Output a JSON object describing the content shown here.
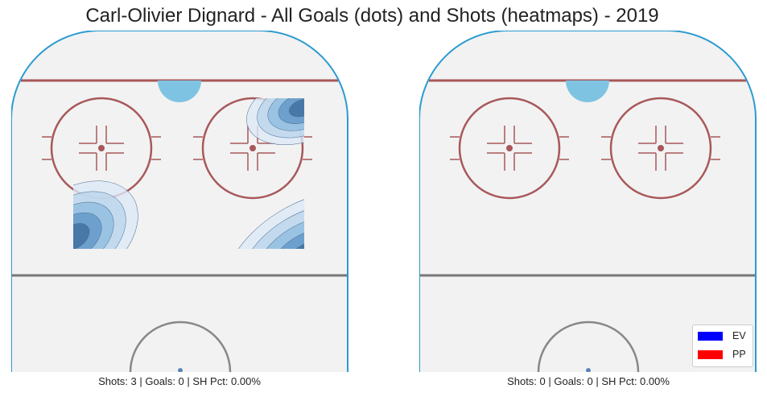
{
  "title": "Carl-Olivier Dignard - All Goals (dots) and Shots (heatmaps) - 2019",
  "colors": {
    "rink_background": "#f2f2f2",
    "boards": "#2b9bd0",
    "goal_line": "#a8585a",
    "faceoff_marks": "#a8585a",
    "crease": "#7ec4e2",
    "blue_line": "#777777",
    "center_circle": "#888888",
    "heatmap": "Blues"
  },
  "panels": [
    {
      "caption": "Shots: 3 | Goals: 0 | SH Pct: 0.00%"
    },
    {
      "caption": "Shots: 0 | Goals: 0 | SH Pct: 0.00%"
    }
  ],
  "legend": {
    "items": [
      {
        "label": "EV",
        "color": "#0000ff"
      },
      {
        "label": "PP",
        "color": "#ff0000"
      }
    ]
  },
  "chart_data": [
    {
      "type": "heatmap",
      "caption": "Shots: 3 | Goals: 0 | SH Pct: 0.00%",
      "shots": 3,
      "goals": 0,
      "sh_pct": "0.00%",
      "goal_dots": [],
      "shot_density_hotspots": [
        {
          "area": "right faceoff circle, near goal line",
          "relative_intensity": 0.85
        },
        {
          "area": "left side below faceoff circles",
          "relative_intensity": 0.9
        },
        {
          "area": "right side below faceoff circles",
          "relative_intensity": 0.95
        }
      ],
      "axes_visible": false
    },
    {
      "type": "heatmap",
      "caption": "Shots: 0 | Goals: 0 | SH Pct: 0.00%",
      "shots": 0,
      "goals": 0,
      "sh_pct": "0.00%",
      "goal_dots": [],
      "shot_density_hotspots": [],
      "axes_visible": false,
      "legend": [
        "EV",
        "PP"
      ],
      "legend_position": "bottom-right"
    }
  ]
}
